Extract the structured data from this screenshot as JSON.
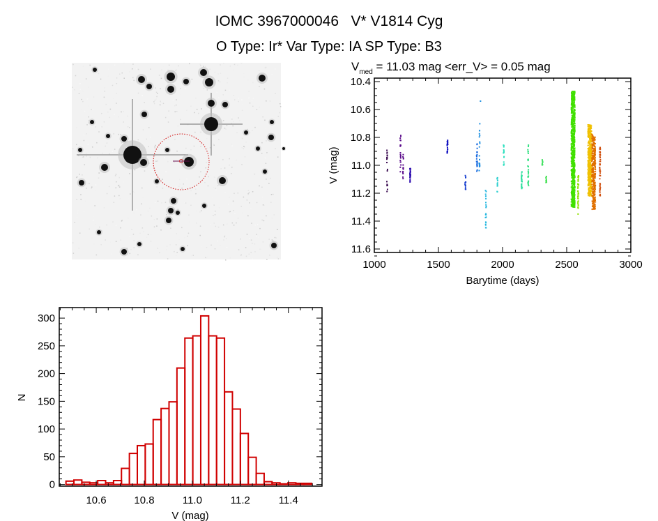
{
  "header": {
    "title": "IOMC 3967000046   V* V1814 Cyg",
    "subtitle": "O Type: Ir*  Var Type: IA  SP Type: B3"
  },
  "colors": {
    "histogram": "#d00000",
    "circle": "#d00000",
    "axes": "#000000"
  },
  "chart_data": [
    {
      "type": "scatter",
      "title_main": "V",
      "title_sub": "med",
      "title_rest": " = 11.03 mag <err_V> = 0.05 mag",
      "xlabel": "Barytime (days)",
      "ylabel": "V (mag)",
      "xlim": [
        1000,
        3000
      ],
      "ylim": [
        11.625,
        10.375
      ],
      "y_reversed": true,
      "xticks": [
        "1000",
        "1500",
        "2000",
        "2500",
        "3000"
      ],
      "yticks": [
        "10.4",
        "10.6",
        "10.8",
        "11.0",
        "11.2",
        "11.4",
        "11.6"
      ],
      "clusters": [
        {
          "x": 1100,
          "y_min": 10.88,
          "y_max": 11.2,
          "n": 18,
          "color": "#3a0a50"
        },
        {
          "x": 1205,
          "y_min": 10.78,
          "y_max": 11.05,
          "n": 20,
          "color": "#5a0a8a"
        },
        {
          "x": 1225,
          "y_min": 10.92,
          "y_max": 11.1,
          "n": 14,
          "color": "#5a0a8a"
        },
        {
          "x": 1280,
          "y_min": 11.02,
          "y_max": 11.12,
          "n": 30,
          "color": "#3010b0"
        },
        {
          "x": 1570,
          "y_min": 10.82,
          "y_max": 10.92,
          "n": 20,
          "color": "#1010c0"
        },
        {
          "x": 1710,
          "y_min": 11.07,
          "y_max": 11.18,
          "n": 14,
          "color": "#1840d0"
        },
        {
          "x": 1800,
          "y_min": 10.84,
          "y_max": 11.05,
          "n": 20,
          "color": "#1a6ae0"
        },
        {
          "x": 1820,
          "y_min": 10.7,
          "y_max": 11.04,
          "n": 22,
          "color": "#2090e0"
        },
        {
          "x": 1825,
          "y_min": 10.54,
          "y_max": 10.54,
          "n": 1,
          "color": "#2090e0"
        },
        {
          "x": 1870,
          "y_min": 11.18,
          "y_max": 11.48,
          "n": 22,
          "color": "#28b8e0"
        },
        {
          "x": 1960,
          "y_min": 11.08,
          "y_max": 11.2,
          "n": 12,
          "color": "#30d0d0"
        },
        {
          "x": 2010,
          "y_min": 10.85,
          "y_max": 11.0,
          "n": 14,
          "color": "#30e0c0"
        },
        {
          "x": 2150,
          "y_min": 11.04,
          "y_max": 11.17,
          "n": 22,
          "color": "#30e0a0"
        },
        {
          "x": 2200,
          "y_min": 10.83,
          "y_max": 11.24,
          "n": 24,
          "color": "#30e080"
        },
        {
          "x": 2310,
          "y_min": 10.96,
          "y_max": 11.0,
          "n": 8,
          "color": "#40e060"
        },
        {
          "x": 2340,
          "y_min": 11.08,
          "y_max": 11.13,
          "n": 8,
          "color": "#40e050"
        },
        {
          "x": 2550,
          "y_min": 10.47,
          "y_max": 11.3,
          "n": 700,
          "color": "#40e000"
        },
        {
          "x": 2590,
          "y_min": 11.07,
          "y_max": 11.35,
          "n": 40,
          "color": "#90e000"
        },
        {
          "x": 2680,
          "y_min": 10.71,
          "y_max": 11.22,
          "n": 400,
          "color": "#f0c000"
        },
        {
          "x": 2710,
          "y_min": 10.78,
          "y_max": 11.32,
          "n": 300,
          "color": "#e07000"
        },
        {
          "x": 2760,
          "y_min": 10.87,
          "y_max": 11.23,
          "n": 50,
          "color": "#d05010"
        }
      ]
    },
    {
      "type": "bar",
      "subtype": "histogram",
      "xlabel": "V (mag)",
      "ylabel": "N",
      "xlim": [
        10.446,
        11.54
      ],
      "ylim": [
        -3,
        319
      ],
      "xticks": [
        "10.6",
        "10.8",
        "11.0",
        "11.2",
        "11.4"
      ],
      "yticks": [
        "0",
        "50",
        "100",
        "150",
        "200",
        "250",
        "300"
      ],
      "bin_start": 10.474,
      "bin_width": 0.033,
      "counts": [
        6,
        8,
        4,
        3,
        7,
        3,
        7,
        29,
        56,
        70,
        73,
        117,
        137,
        149,
        210,
        264,
        268,
        304,
        268,
        264,
        167,
        136,
        92,
        49,
        20,
        5,
        3,
        1,
        3,
        2,
        2
      ]
    }
  ]
}
